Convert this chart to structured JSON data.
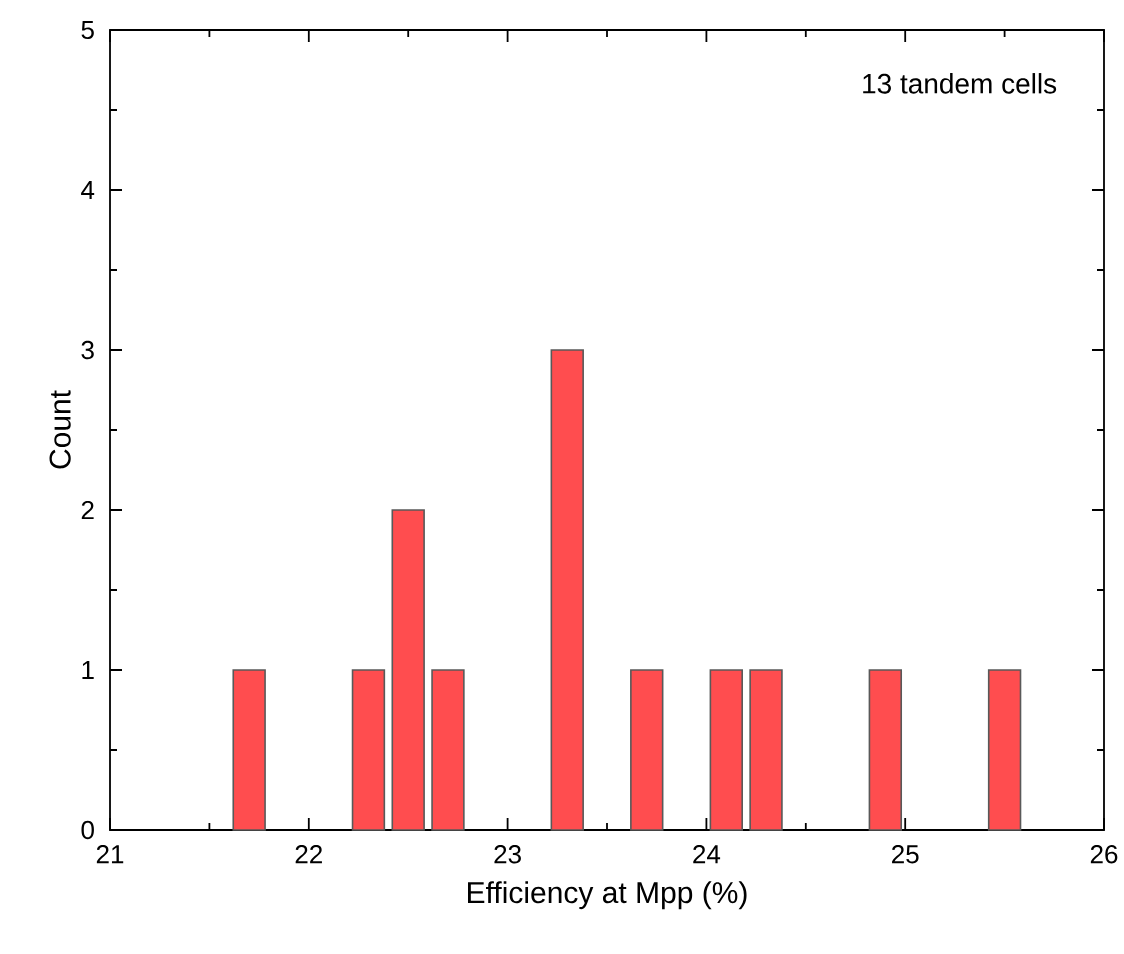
{
  "chart_data": {
    "type": "histogram",
    "xlabel": "Efficiency at Mpp (%)",
    "ylabel": "Count",
    "annotations": [
      "13 tandem cells"
    ],
    "bins": [
      21.6,
      21.8,
      22.0,
      22.2,
      22.4,
      22.6,
      22.8,
      23.0,
      23.2,
      23.4,
      23.6,
      23.8,
      24.0,
      24.2,
      24.4,
      24.6,
      24.8,
      25.0,
      25.2,
      25.4,
      25.6
    ],
    "values": [
      1,
      0,
      0,
      1,
      2,
      1,
      0,
      0,
      3,
      0,
      1,
      0,
      1,
      1,
      0,
      0,
      1,
      0,
      0,
      1
    ],
    "color": "#ff4d4f",
    "xlim": [
      21,
      26
    ],
    "ylim": [
      0,
      5
    ],
    "xticks": [
      21,
      22,
      23,
      24,
      25,
      26
    ],
    "yticks": [
      0,
      1,
      2,
      3,
      4,
      5
    ],
    "grid": false
  }
}
